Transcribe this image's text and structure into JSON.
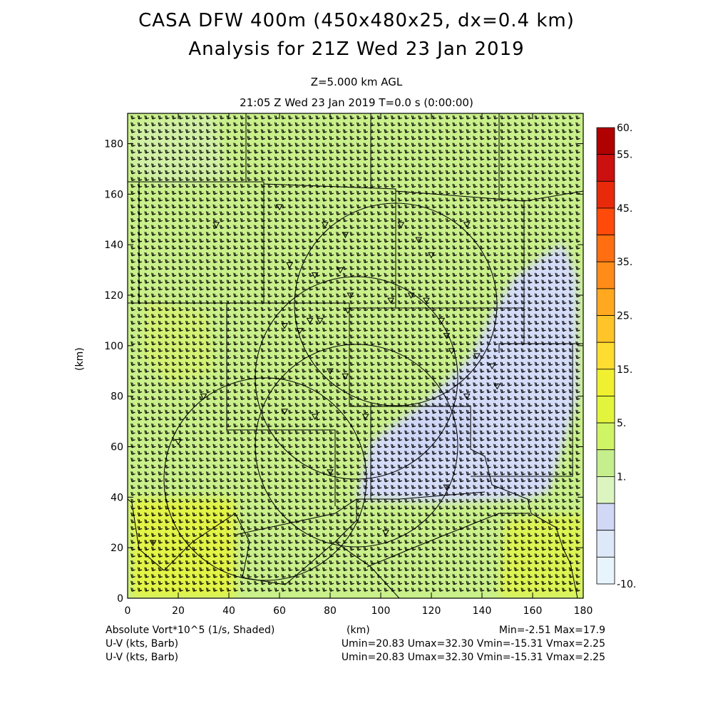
{
  "header": {
    "title_line1": "CASA DFW 400m (450x480x25, dx=0.4 km)",
    "title_line2": "Analysis for 21Z Wed 23 Jan 2019",
    "level": "Z=5.000 km AGL",
    "valid_time": "21:05 Z Wed 23 Jan 2019    T=0.0 s (0:00:00)"
  },
  "footer": {
    "line1_left": "Absolute Vort*10^5 (1/s, Shaded)",
    "line1_mid": "(km)",
    "line1_right": "Min=-2.51 Max=17.9",
    "line2_left": "U-V (kts, Barb)",
    "line2_right": "Umin=20.83 Umax=32.30 Vmin=-15.31 Vmax=2.25",
    "line3_left": "U-V (kts, Barb)",
    "line3_right": "Umin=20.83 Umax=32.30 Vmin=-15.31 Vmax=2.25"
  },
  "colors": {
    "background_field": "#c9f08a",
    "bright_field": "#e6f53a",
    "low_field": "#d4dcf8",
    "lines": "#000000"
  },
  "chart_data": {
    "type": "heatmap",
    "title": "CASA DFW 400m (450x480x25, dx=0.4 km)",
    "xlabel": "(km)",
    "ylabel": "(km)",
    "xlim": [
      0,
      180
    ],
    "ylim": [
      0,
      192
    ],
    "x_ticks": [
      0,
      20,
      40,
      60,
      80,
      100,
      120,
      140,
      160,
      180
    ],
    "y_ticks": [
      0,
      20,
      40,
      60,
      80,
      100,
      120,
      140,
      160,
      180
    ],
    "field": "Absolute Vort*10^5 (1/s, Shaded)",
    "field_min": -2.51,
    "field_max": 17.9,
    "colorbar": {
      "labels": [
        "60.",
        "55.",
        "45.",
        "35.",
        "25.",
        "15.",
        "5.",
        "1.",
        "-10."
      ],
      "colors": [
        "#b00000",
        "#cc1010",
        "#e82a0a",
        "#ff4a0a",
        "#ff6e10",
        "#ff8c18",
        "#ffa820",
        "#ffc428",
        "#ffdc30",
        "#f0f030",
        "#e2f53c",
        "#cff466",
        "#c5ee8c",
        "#dcf5c0",
        "#d0d8f5",
        "#dde8f8",
        "#e8f4fb"
      ]
    },
    "wind_barbs": {
      "u_min": 20.83,
      "u_max": 32.3,
      "v_min": -15.31,
      "v_max": 2.25
    },
    "radar_rings_center_km": [
      [
        85,
        142
      ],
      [
        115,
        109
      ],
      [
        97,
        70
      ],
      [
        55,
        48
      ]
    ],
    "radar_ring_radius_km": 40
  }
}
